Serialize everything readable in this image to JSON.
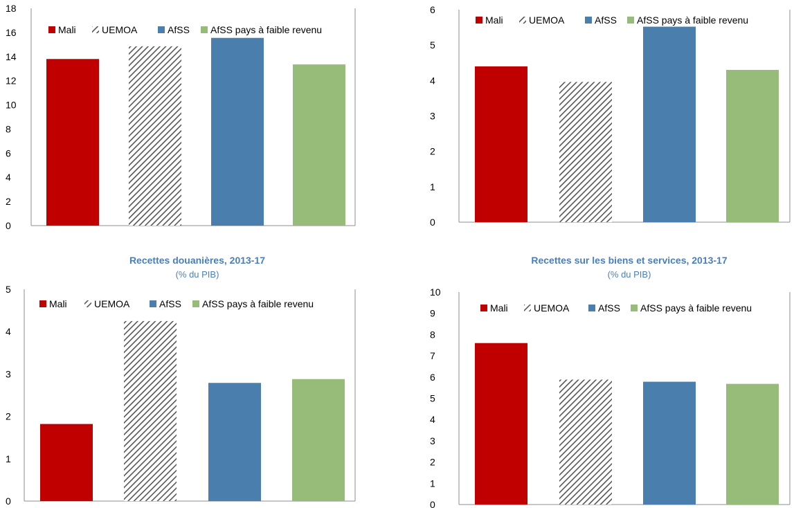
{
  "colors": {
    "mali": "#c00000",
    "uemoa": "#555555",
    "afss": "#4a7ead",
    "afss_low": "#97bb78",
    "title": "#4a7ebb"
  },
  "chart_data": [
    {
      "type": "bar",
      "title": "",
      "subtitle": "",
      "categories": [
        "Mali",
        "UEMOA",
        "AfSS",
        "AfSS pays à faible revenu"
      ],
      "values": [
        13.8,
        14.85,
        15.55,
        13.35
      ],
      "ylim": [
        0,
        18
      ],
      "yticks": [
        0,
        2,
        4,
        6,
        8,
        10,
        12,
        14,
        16,
        18
      ],
      "legend": [
        "Mali",
        "UEMOA",
        "AfSS",
        "AfSS pays à faible revenu"
      ],
      "legend_position": "top"
    },
    {
      "type": "bar",
      "title": "",
      "subtitle": "",
      "categories": [
        "Mali",
        "UEMOA",
        "AfSS",
        "AfSS pays à faible revenu"
      ],
      "values": [
        4.4,
        3.96,
        5.52,
        4.3
      ],
      "ylim": [
        0,
        6
      ],
      "yticks": [
        0,
        1,
        2,
        3,
        4,
        5,
        6
      ],
      "legend": [
        "Mali",
        "UEMOA",
        "AfSS",
        "AfSS pays à faible revenu"
      ],
      "legend_position": "top"
    },
    {
      "type": "bar",
      "title": "Recettes douanières, 2013-17",
      "subtitle": "(% du PIB)",
      "categories": [
        "Mali",
        "UEMOA",
        "AfSS",
        "AfSS pays à faible revenu"
      ],
      "values": [
        1.82,
        4.25,
        2.79,
        2.88
      ],
      "ylim": [
        0,
        5
      ],
      "yticks": [
        0,
        1,
        2,
        3,
        4,
        5
      ],
      "legend": [
        "Mali",
        "UEMOA",
        "AfSS",
        "AfSS pays à faible revenu"
      ],
      "legend_position": "top"
    },
    {
      "type": "bar",
      "title": "Recettes sur les biens et services, 2013-17",
      "subtitle": "(% du PIB)",
      "categories": [
        "Mali",
        "UEMOA",
        "AfSS",
        "AfSS pays à faible revenu"
      ],
      "values": [
        7.6,
        5.88,
        5.78,
        5.68
      ],
      "ylim": [
        0,
        10
      ],
      "yticks": [
        0,
        1,
        2,
        3,
        4,
        5,
        6,
        7,
        8,
        9,
        10
      ],
      "legend": [
        "Mali",
        "UEMOA",
        "AfSS",
        "AfSS pays à faible revenu"
      ],
      "legend_position": "top"
    }
  ]
}
